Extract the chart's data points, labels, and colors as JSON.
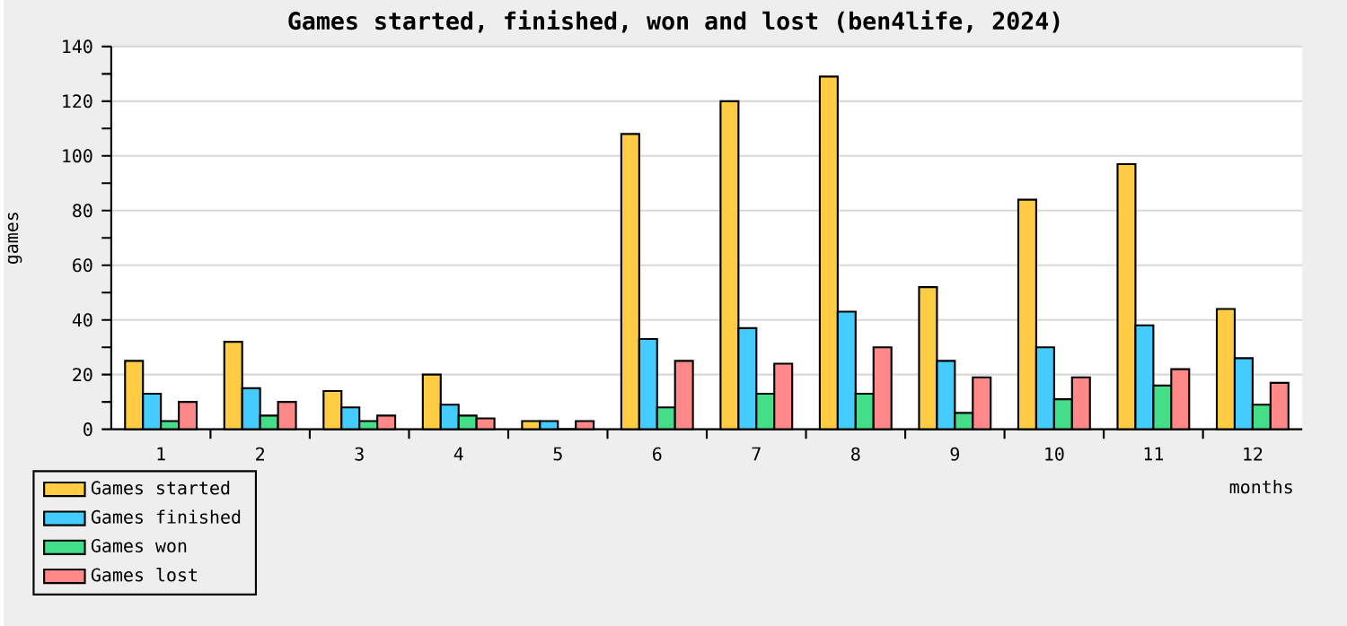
{
  "chart_data": {
    "type": "bar",
    "title": "Games started, finished, won and lost (ben4life, 2024)",
    "xlabel": "months",
    "ylabel": "games",
    "categories": [
      "1",
      "2",
      "3",
      "4",
      "5",
      "6",
      "7",
      "8",
      "9",
      "10",
      "11",
      "12"
    ],
    "series": [
      {
        "name": "Games started",
        "color": "#ffcc44",
        "values": [
          25,
          32,
          14,
          20,
          3,
          108,
          120,
          129,
          52,
          84,
          97,
          44
        ]
      },
      {
        "name": "Games finished",
        "color": "#44ccff",
        "values": [
          13,
          15,
          8,
          9,
          3,
          33,
          37,
          43,
          25,
          30,
          38,
          26
        ]
      },
      {
        "name": "Games won",
        "color": "#44dd88",
        "values": [
          3,
          5,
          3,
          5,
          0,
          8,
          13,
          13,
          6,
          11,
          16,
          9
        ]
      },
      {
        "name": "Games lost",
        "color": "#ff8888",
        "values": [
          10,
          10,
          5,
          4,
          3,
          25,
          24,
          30,
          19,
          19,
          22,
          17
        ]
      }
    ],
    "ylim": [
      0,
      140
    ],
    "yticks": [
      0,
      20,
      40,
      60,
      80,
      100,
      120,
      140
    ],
    "grid": "y",
    "legend": "bottom left"
  }
}
